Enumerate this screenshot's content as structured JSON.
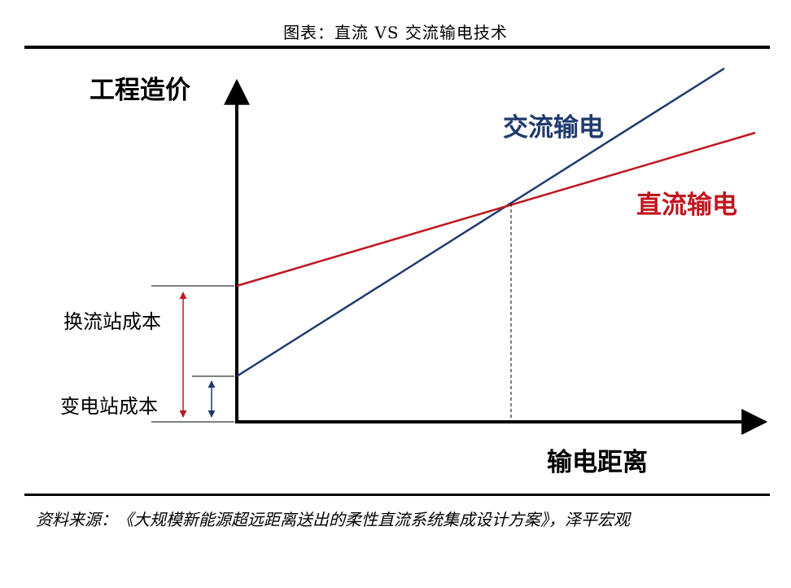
{
  "title": "图表：直流 VS 交流输电技术",
  "diagram": {
    "y_axis_label": "工程造价",
    "x_axis_label": "输电距离",
    "ac_label": "交流输电",
    "dc_label": "直流输电",
    "converter_cost_label": "换流站成本",
    "substation_cost_label": "变电站成本",
    "colors": {
      "ac": "#1f3a6e",
      "dc": "#c0161f",
      "axis": "#000000",
      "text": "#000000"
    }
  },
  "source": "资料来源：《大规模新能源超远距离送出的柔性直流系统集成设计方案》，泽平宏观"
}
